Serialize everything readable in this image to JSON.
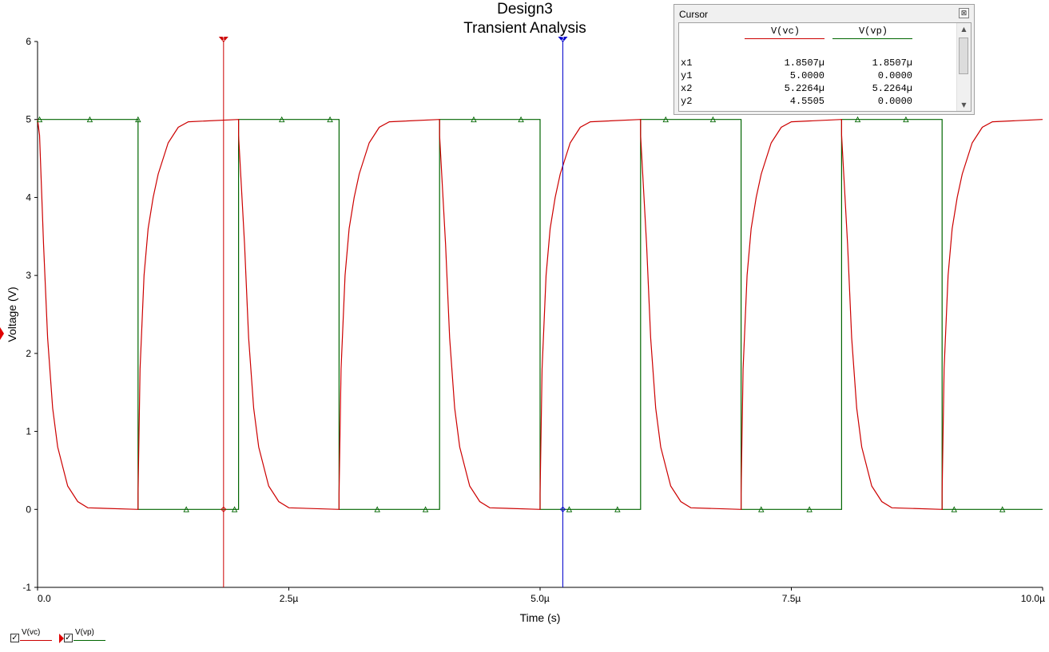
{
  "colors": {
    "vc": "#cc0000",
    "vp": "#006600",
    "cursor1": "#cc0000",
    "cursor2": "#0000cc"
  },
  "chart_data": {
    "type": "line",
    "title": "Design3",
    "subtitle": "Transient Analysis",
    "xlabel": "Time (s)",
    "ylabel": "Voltage (V)",
    "xlim": [
      0,
      10
    ],
    "ylim": [
      -1,
      6
    ],
    "x_unit": "µs",
    "x_ticks": [
      0,
      2.5,
      5,
      7.5,
      10
    ],
    "x_tick_labels": [
      "0.0",
      "2.5µ",
      "5.0µ",
      "7.5µ",
      "10.0µ"
    ],
    "y_ticks": [
      -1,
      0,
      1,
      2,
      3,
      4,
      5,
      6
    ],
    "y_tick_labels": [
      "-1",
      "0",
      "1",
      "2",
      "3",
      "4",
      "5",
      "6"
    ],
    "series": [
      {
        "name": "V(vc)",
        "color": "#cc0000",
        "points": [
          [
            0,
            5
          ],
          [
            0.02,
            4.8
          ],
          [
            0.06,
            3.4
          ],
          [
            0.1,
            2.2
          ],
          [
            0.15,
            1.3
          ],
          [
            0.2,
            0.8
          ],
          [
            0.3,
            0.3
          ],
          [
            0.4,
            0.1
          ],
          [
            0.5,
            0.02
          ],
          [
            1.0,
            0
          ],
          [
            1.0,
            0.2
          ],
          [
            1.02,
            1.8
          ],
          [
            1.06,
            3.0
          ],
          [
            1.1,
            3.6
          ],
          [
            1.15,
            4.0
          ],
          [
            1.2,
            4.3
          ],
          [
            1.3,
            4.7
          ],
          [
            1.4,
            4.9
          ],
          [
            1.5,
            4.97
          ],
          [
            2.0,
            5.0
          ],
          [
            2.0,
            4.8
          ],
          [
            2.06,
            3.4
          ],
          [
            2.1,
            2.2
          ],
          [
            2.15,
            1.3
          ],
          [
            2.2,
            0.8
          ],
          [
            2.3,
            0.3
          ],
          [
            2.4,
            0.1
          ],
          [
            2.5,
            0.02
          ],
          [
            3.0,
            0
          ],
          [
            3.0,
            0.2
          ],
          [
            3.02,
            1.8
          ],
          [
            3.06,
            3.0
          ],
          [
            3.1,
            3.6
          ],
          [
            3.15,
            4.0
          ],
          [
            3.2,
            4.3
          ],
          [
            3.3,
            4.7
          ],
          [
            3.4,
            4.9
          ],
          [
            3.5,
            4.97
          ],
          [
            4.0,
            5.0
          ],
          [
            4.0,
            4.8
          ],
          [
            4.06,
            3.4
          ],
          [
            4.1,
            2.2
          ],
          [
            4.15,
            1.3
          ],
          [
            4.2,
            0.8
          ],
          [
            4.3,
            0.3
          ],
          [
            4.4,
            0.1
          ],
          [
            4.5,
            0.02
          ],
          [
            5.0,
            0
          ],
          [
            5.0,
            0.2
          ],
          [
            5.02,
            1.8
          ],
          [
            5.06,
            3.0
          ],
          [
            5.1,
            3.6
          ],
          [
            5.15,
            4.0
          ],
          [
            5.2,
            4.3
          ],
          [
            5.3,
            4.7
          ],
          [
            5.4,
            4.9
          ],
          [
            5.5,
            4.97
          ],
          [
            6.0,
            5.0
          ],
          [
            6.0,
            4.8
          ],
          [
            6.06,
            3.4
          ],
          [
            6.1,
            2.2
          ],
          [
            6.15,
            1.3
          ],
          [
            6.2,
            0.8
          ],
          [
            6.3,
            0.3
          ],
          [
            6.4,
            0.1
          ],
          [
            6.5,
            0.02
          ],
          [
            7.0,
            0
          ],
          [
            7.0,
            0.2
          ],
          [
            7.02,
            1.8
          ],
          [
            7.06,
            3.0
          ],
          [
            7.1,
            3.6
          ],
          [
            7.15,
            4.0
          ],
          [
            7.2,
            4.3
          ],
          [
            7.3,
            4.7
          ],
          [
            7.4,
            4.9
          ],
          [
            7.5,
            4.97
          ],
          [
            8.0,
            5.0
          ],
          [
            8.0,
            4.8
          ],
          [
            8.06,
            3.4
          ],
          [
            8.1,
            2.2
          ],
          [
            8.15,
            1.3
          ],
          [
            8.2,
            0.8
          ],
          [
            8.3,
            0.3
          ],
          [
            8.4,
            0.1
          ],
          [
            8.5,
            0.02
          ],
          [
            9.0,
            0
          ],
          [
            9.0,
            0.2
          ],
          [
            9.02,
            1.8
          ],
          [
            9.06,
            3.0
          ],
          [
            9.1,
            3.6
          ],
          [
            9.15,
            4.0
          ],
          [
            9.2,
            4.3
          ],
          [
            9.3,
            4.7
          ],
          [
            9.4,
            4.9
          ],
          [
            9.5,
            4.97
          ],
          [
            10.0,
            5.0
          ]
        ]
      },
      {
        "name": "V(vp)",
        "color": "#006600",
        "points": [
          [
            0,
            5
          ],
          [
            1,
            5
          ],
          [
            1,
            0
          ],
          [
            2,
            0
          ],
          [
            2,
            5
          ],
          [
            3,
            5
          ],
          [
            3,
            0
          ],
          [
            4,
            0
          ],
          [
            4,
            5
          ],
          [
            5,
            5
          ],
          [
            5,
            0
          ],
          [
            6,
            0
          ],
          [
            6,
            5
          ],
          [
            7,
            5
          ],
          [
            7,
            0
          ],
          [
            8,
            0
          ],
          [
            8,
            5
          ],
          [
            9,
            5
          ],
          [
            9,
            0
          ],
          [
            10,
            0
          ]
        ],
        "markers": [
          [
            0.02,
            5
          ],
          [
            0.52,
            5
          ],
          [
            1.0,
            5
          ],
          [
            1.48,
            0
          ],
          [
            1.96,
            0
          ],
          [
            2.43,
            5
          ],
          [
            2.91,
            5
          ],
          [
            3.38,
            0
          ],
          [
            3.86,
            0
          ],
          [
            4.34,
            5
          ],
          [
            4.81,
            5
          ],
          [
            5.29,
            0
          ],
          [
            5.77,
            0
          ],
          [
            6.25,
            5
          ],
          [
            6.72,
            5
          ],
          [
            7.2,
            0
          ],
          [
            7.68,
            0
          ],
          [
            8.16,
            5
          ],
          [
            8.64,
            5
          ],
          [
            9.12,
            0
          ],
          [
            9.6,
            0
          ]
        ]
      }
    ],
    "cursors": [
      {
        "name": "1",
        "x": 1.8507,
        "color": "#cc0000"
      },
      {
        "name": "2",
        "x": 5.2264,
        "color": "#0000cc"
      }
    ],
    "grid": false,
    "legend": "bottom-left"
  },
  "cursor_panel": {
    "title": "Cursor",
    "close_glyph": "⊠",
    "columns": [
      "V(vc)",
      "V(vp)"
    ],
    "rows": [
      {
        "label": "x1",
        "v1": "1.8507µ",
        "v2": "1.8507µ"
      },
      {
        "label": "y1",
        "v1": "5.0000",
        "v2": "0.0000"
      },
      {
        "label": "x2",
        "v1": "5.2264µ",
        "v2": "5.2264µ"
      },
      {
        "label": "y2",
        "v1": "4.5505",
        "v2": "0.0000"
      }
    ]
  },
  "legend": {
    "items": [
      {
        "label": "V(vc)",
        "checked": "✓"
      },
      {
        "label": "V(vp)",
        "checked": "✓"
      }
    ]
  }
}
